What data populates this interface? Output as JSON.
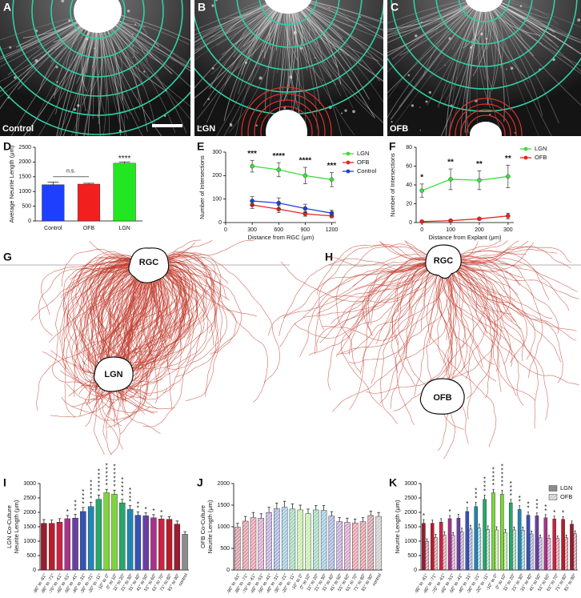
{
  "panel_letters": [
    "A",
    "B",
    "C",
    "D",
    "E",
    "F",
    "G",
    "H",
    "I",
    "J",
    "K"
  ],
  "image_labels": [
    "Control",
    "LGN",
    "OFB"
  ],
  "tracing_labels": {
    "G": [
      "RGC",
      "LGN"
    ],
    "H": [
      "RGC",
      "OFB"
    ]
  },
  "chart_data": [
    {
      "type": "bar",
      "ylabel": "Average Neurite Length (μm)",
      "categories": [
        "Control",
        "OFB",
        "LGN"
      ],
      "values": [
        1230,
        1250,
        1960
      ],
      "errors": [
        90,
        30,
        45
      ],
      "colors": [
        "#1f3fff",
        "#f21f1f",
        "#22e622"
      ],
      "ylim": [
        0,
        2500
      ],
      "yticks": [
        0,
        500,
        1000,
        1500,
        2000,
        2500
      ],
      "bar_annotations": [
        null,
        null,
        "****"
      ],
      "comparison_label": "n.s."
    },
    {
      "type": "line",
      "xlabel": "Distance from RGC (μm)",
      "ylabel": "Number of Intersections",
      "x": [
        300,
        600,
        900,
        1200
      ],
      "xlim": [
        0,
        1250
      ],
      "xticks": [
        0,
        300,
        600,
        900,
        1200
      ],
      "ylim": [
        0,
        300
      ],
      "yticks": [
        0,
        100,
        200,
        300
      ],
      "series": [
        {
          "name": "LGN",
          "color": "#3ddc3d",
          "values": [
            240,
            225,
            200,
            183
          ],
          "errors": [
            25,
            30,
            35,
            30
          ]
        },
        {
          "name": "OFB",
          "color": "#e8241d",
          "values": [
            75,
            57,
            37,
            28
          ],
          "errors": [
            15,
            15,
            10,
            8
          ]
        },
        {
          "name": "Control",
          "color": "#1f3fd0",
          "values": [
            92,
            83,
            60,
            40
          ],
          "errors": [
            18,
            22,
            18,
            12
          ]
        }
      ],
      "annotations": [
        "***",
        "****",
        "****",
        "***"
      ]
    },
    {
      "type": "line",
      "xlabel": "Distance from Explant (μm)",
      "ylabel": "Number of Intersections",
      "x": [
        0,
        100,
        200,
        300
      ],
      "xlim": [
        -20,
        320
      ],
      "xticks": [
        0,
        100,
        200,
        300
      ],
      "ylim": [
        0,
        80
      ],
      "yticks": [
        0,
        20,
        40,
        60,
        80
      ],
      "series": [
        {
          "name": "LGN",
          "color": "#3ddc3d",
          "values": [
            34,
            46,
            45,
            49
          ],
          "errors": [
            7,
            11,
            10,
            12
          ]
        },
        {
          "name": "OFB",
          "color": "#e8241d",
          "values": [
            1,
            2,
            4,
            7
          ],
          "errors": [
            1,
            1,
            1,
            3
          ]
        }
      ],
      "annotations": [
        "*",
        "**",
        "**",
        "**"
      ]
    },
    {
      "type": "bar",
      "ylabel": [
        "LGN Co-Culture",
        "Neurite Length (μm)"
      ],
      "categories": [
        "-90° to -81°",
        "-80° to -71°",
        "-70° to -61°",
        "-60° to -51°",
        "-50° to -41°",
        "-40° to -31°",
        "-30° to -21°",
        "-20° to -11°",
        "-10° to 0°",
        "0° to 10°",
        "11° to 20°",
        "21° to 30°",
        "31° to 40°",
        "41° to 50°",
        "51° to 60°",
        "61° to 70°",
        "71° to 80°",
        "81° to 90°",
        "control"
      ],
      "values": [
        1620,
        1620,
        1660,
        1780,
        1800,
        2030,
        2200,
        2450,
        2680,
        2630,
        2330,
        2100,
        1900,
        1880,
        1810,
        1770,
        1760,
        1590,
        1240
      ],
      "errors": [
        130,
        110,
        120,
        110,
        130,
        140,
        150,
        150,
        120,
        140,
        120,
        130,
        110,
        100,
        110,
        100,
        90,
        110,
        90
      ],
      "colors": [
        "#9b1b30",
        "#b81d2d",
        "#cc2244",
        "#a8328a",
        "#6a3fa5",
        "#3553b3",
        "#1f86b5",
        "#25a96a",
        "#7dd63b",
        "#7dd63b",
        "#25a96a",
        "#1f86b5",
        "#3553b3",
        "#6a3fa5",
        "#a8328a",
        "#cc2244",
        "#b81d2d",
        "#9b1b30",
        "#8c8c8c"
      ],
      "ylim": [
        0,
        3000
      ],
      "yticks": [
        0,
        500,
        1000,
        1500,
        2000,
        2500,
        3000
      ],
      "bar_annotations": [
        null,
        null,
        null,
        "*",
        "***",
        "****",
        "*****",
        "******",
        "******",
        "******",
        "*****",
        "****",
        "**",
        "*",
        "*",
        "*",
        null,
        null,
        null
      ]
    },
    {
      "type": "bar",
      "ylabel": [
        "OFB Co-Culture",
        "Neurite Length (μm)"
      ],
      "hatch": true,
      "categories": [
        "-90° to -81°",
        "-80° to -71°",
        "-70° to -61°",
        "-60° to -51°",
        "-50° to -41°",
        "-40° to -31°",
        "-30° to -21°",
        "-20° to -11°",
        "-10° to 0°",
        "0° to 10°",
        "11° to 20°",
        "21° to 30°",
        "31° to 40°",
        "41° to 50°",
        "51° to 60°",
        "61° to 70°",
        "71° to 80°",
        "81° to 90°",
        "control"
      ],
      "values": [
        990,
        1130,
        1210,
        1200,
        1330,
        1420,
        1450,
        1410,
        1390,
        1300,
        1390,
        1380,
        1250,
        1120,
        1100,
        1090,
        1120,
        1260,
        1240
      ],
      "errors": [
        90,
        110,
        120,
        100,
        120,
        130,
        140,
        120,
        110,
        110,
        100,
        110,
        100,
        90,
        100,
        90,
        90,
        100,
        90
      ],
      "colors": [
        "#9b1b30",
        "#b81d2d",
        "#cc2244",
        "#a8328a",
        "#6a3fa5",
        "#3553b3",
        "#1f86b5",
        "#25a96a",
        "#7dd63b",
        "#7dd63b",
        "#25a96a",
        "#1f86b5",
        "#3553b3",
        "#6a3fa5",
        "#a8328a",
        "#cc2244",
        "#b81d2d",
        "#9b1b30",
        "#8c8c8c"
      ],
      "ylim": [
        0,
        2000
      ],
      "yticks": [
        0,
        500,
        1000,
        1500,
        2000
      ]
    },
    {
      "type": "grouped_bar",
      "ylabel": "Neurite Length (μm)",
      "categories": [
        "-90° to -81°",
        "-80° to -71°",
        "-70° to -61°",
        "-60° to -51°",
        "-50° to -41°",
        "-40° to -31°",
        "-30° to -21°",
        "-20° to -11°",
        "-10° to 0°",
        "0° to 10°",
        "11° to 20°",
        "21° to 30°",
        "31° to 40°",
        "41° to 50°",
        "51° to 60°",
        "61° to 70°",
        "71° to 80°",
        "81° to 90°"
      ],
      "colors": [
        "#9b1b30",
        "#b81d2d",
        "#cc2244",
        "#a8328a",
        "#6a3fa5",
        "#3553b3",
        "#1f86b5",
        "#25a96a",
        "#7dd63b",
        "#7dd63b",
        "#25a96a",
        "#1f86b5",
        "#3553b3",
        "#6a3fa5",
        "#a8328a",
        "#cc2244",
        "#b81d2d",
        "#9b1b30"
      ],
      "ylim": [
        0,
        3000
      ],
      "yticks": [
        0,
        500,
        1000,
        1500,
        2000,
        2500,
        3000
      ],
      "series": [
        {
          "name": "LGN",
          "color": "#8c8c8c",
          "values": [
            1620,
            1620,
            1660,
            1780,
            1800,
            2030,
            2200,
            2450,
            2680,
            2630,
            2330,
            2100,
            1900,
            1880,
            1810,
            1770,
            1760,
            1590
          ],
          "errors": [
            130,
            110,
            120,
            110,
            130,
            140,
            150,
            150,
            120,
            140,
            120,
            130,
            110,
            100,
            110,
            100,
            90,
            110
          ],
          "bar_annotations": [
            "*",
            null,
            null,
            "*",
            null,
            "*",
            "***",
            "****",
            "*****",
            "******",
            "****",
            "**",
            "**",
            "***",
            "**",
            "*",
            "*",
            null
          ]
        },
        {
          "name": "OFB",
          "color": "#8c8c8c",
          "hatch": true,
          "values": [
            990,
            1130,
            1210,
            1200,
            1330,
            1420,
            1450,
            1410,
            1390,
            1300,
            1390,
            1380,
            1250,
            1120,
            1100,
            1090,
            1120,
            1260
          ],
          "errors": [
            90,
            110,
            120,
            100,
            120,
            130,
            140,
            120,
            110,
            110,
            100,
            110,
            100,
            90,
            100,
            90,
            90,
            100
          ]
        }
      ]
    }
  ]
}
